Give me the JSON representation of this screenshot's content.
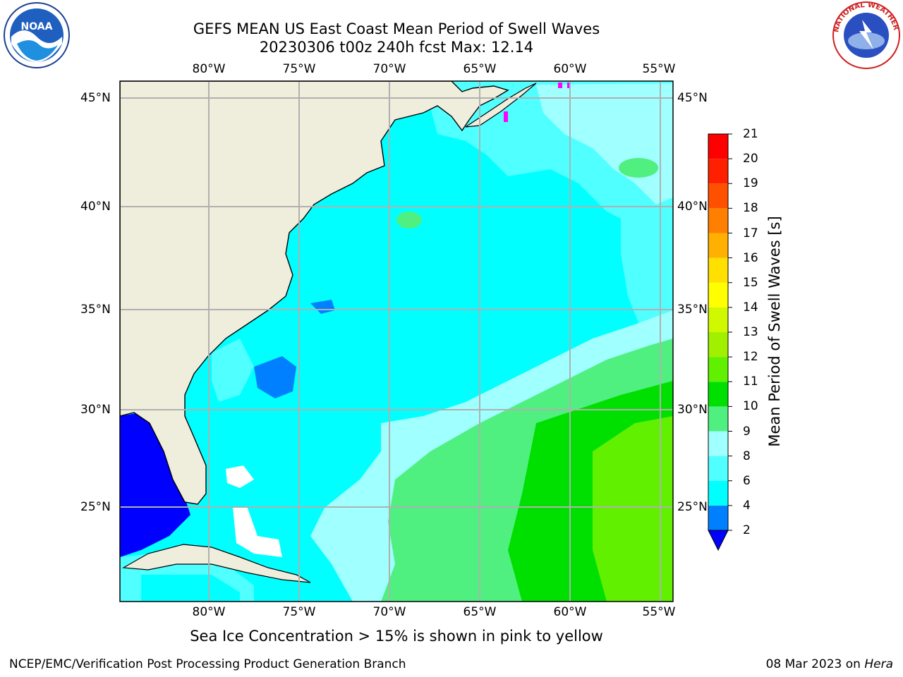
{
  "title_line1": "GEFS MEAN US East Coast Mean Period of Swell Waves",
  "title_line2": "20230306 t00z 240h fcst   Max: 12.14",
  "lon_labels": [
    "80°W",
    "75°W",
    "70°W",
    "65°W",
    "60°W",
    "55°W"
  ],
  "lat_labels": [
    "45°N",
    "40°N",
    "35°N",
    "30°N",
    "25°N"
  ],
  "colorbar": {
    "label": "Mean Period of Swell Waves [s]",
    "ticks": [
      "2",
      "4",
      "6",
      "8",
      "9",
      "10",
      "11",
      "12",
      "13",
      "14",
      "15",
      "16",
      "17",
      "18",
      "19",
      "20",
      "21"
    ],
    "colors": [
      "#0000ff",
      "#0080ff",
      "#00ffff",
      "#50ffff",
      "#a0ffff",
      "#50f080",
      "#00e000",
      "#60f000",
      "#a0f000",
      "#d0f800",
      "#ffff00",
      "#ffe000",
      "#ffb000",
      "#ff8000",
      "#ff5000",
      "#ff2000",
      "#ff0000"
    ]
  },
  "legend_colors": {
    "land": "#efeedd",
    "ocean_base": "#00ffff",
    "ocean_light": "#50ffff",
    "ocean_pale": "#a0ffff",
    "ocean_green": "#50f080",
    "ocean_bright_green": "#00e000",
    "ocean_blue": "#0080ff",
    "gulf_deep_blue": "#0000ff",
    "grid": "#b0b0b0",
    "sea_ice": "#ff00ff"
  },
  "note": "Sea Ice Concentration > 15% is shown in pink to yellow",
  "footer_left": "NCEP/EMC/Verification Post Processing Product Generation Branch",
  "footer_right_date": "08 Mar 2023 on",
  "footer_right_machine": "Hera",
  "logos": [
    "noaa-logo",
    "nws-logo"
  ],
  "logo_text": {
    "noaa": "NOAA",
    "nws": "NATIONAL WEATHER SERVICE"
  }
}
